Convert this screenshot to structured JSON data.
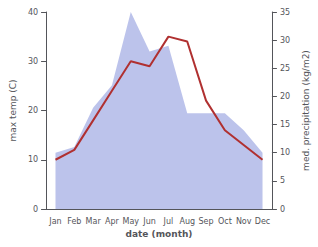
{
  "chart_data": {
    "type": "line",
    "xlabel": "date (month)",
    "ylabel": "max temp (C)",
    "y2label": "med. precipitation (kg/m2)",
    "categories": [
      "Jan",
      "Feb",
      "Mar",
      "Apr",
      "May",
      "Jun",
      "Jul",
      "Aug",
      "Sep",
      "Oct",
      "Nov",
      "Dec"
    ],
    "series": [
      {
        "type": "area",
        "axis": "y2",
        "color": "#b0b8e8",
        "values": [
          10,
          11,
          18,
          22,
          35,
          28,
          29,
          17,
          17,
          17,
          14,
          10
        ]
      },
      {
        "type": "line",
        "color": "#b03030",
        "values": [
          10,
          12,
          18,
          24,
          30,
          29,
          35,
          34,
          22,
          16,
          13,
          10
        ]
      }
    ],
    "ylim": [
      0,
      40
    ],
    "yticks": [
      0,
      10,
      20,
      30,
      40
    ],
    "y2lim": [
      0,
      35
    ],
    "y2ticks": [
      0,
      5,
      10,
      15,
      20,
      25,
      30,
      35
    ],
    "grid": false
  }
}
